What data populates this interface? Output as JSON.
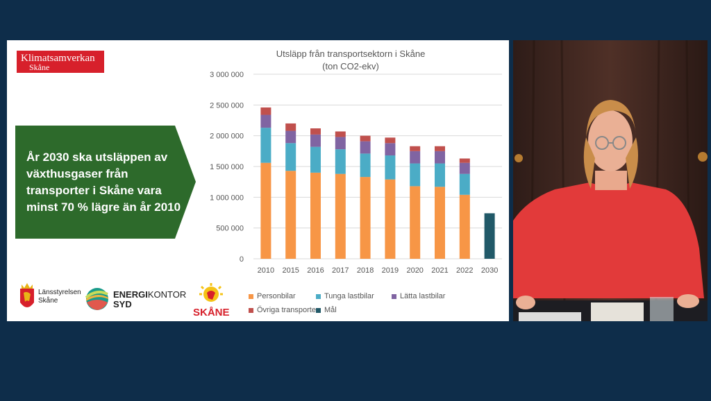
{
  "slide": {
    "logo_klimatsamverkan": {
      "line1": "Klimatsamverkan",
      "line2": "Skåne"
    },
    "banner_text": "År 2030 ska utsläppen av växthusgaser från transporter i Skåne vara minst 70 % lägre än år 2010",
    "logos": {
      "lansstyrelsen": {
        "line1": "Länsstyrelsen",
        "line2": "Skåne"
      },
      "energikontor": {
        "line1_bold": "ENERGI",
        "line1_light": "KONTOR",
        "line2": "SYD"
      },
      "region_skane": "SKÅNE"
    }
  },
  "chart_data": {
    "type": "bar",
    "stacked": true,
    "title": "Utsläpp från transportsektorn i Skåne",
    "subtitle": "(ton CO2-ekv)",
    "categories": [
      "2010",
      "2015",
      "2016",
      "2017",
      "2018",
      "2019",
      "2020",
      "2021",
      "2022",
      "2030"
    ],
    "ylim": [
      0,
      3000000
    ],
    "yticks": [
      "0",
      "500 000",
      "1 000 000",
      "1 500 000",
      "2 000 000",
      "2 500 000",
      "3 000 000"
    ],
    "grid": true,
    "legend_position": "bottom",
    "series": [
      {
        "name": "Personbilar",
        "color": "#f79646",
        "values": [
          1560000,
          1430000,
          1400000,
          1380000,
          1330000,
          1290000,
          1180000,
          1170000,
          1040000,
          0
        ]
      },
      {
        "name": "Tunga lastbilar",
        "color": "#4bacc6",
        "values": [
          570000,
          450000,
          420000,
          400000,
          380000,
          390000,
          370000,
          380000,
          340000,
          0
        ]
      },
      {
        "name": "Lätta lastbilar",
        "color": "#8064a2",
        "values": [
          210000,
          200000,
          200000,
          200000,
          200000,
          200000,
          200000,
          200000,
          180000,
          0
        ]
      },
      {
        "name": "Övriga transporter",
        "color": "#c0504d",
        "values": [
          120000,
          120000,
          100000,
          90000,
          90000,
          90000,
          80000,
          80000,
          70000,
          0
        ]
      },
      {
        "name": "Mål",
        "color": "#215968",
        "values": [
          0,
          0,
          0,
          0,
          0,
          0,
          0,
          0,
          0,
          740000
        ]
      }
    ]
  }
}
